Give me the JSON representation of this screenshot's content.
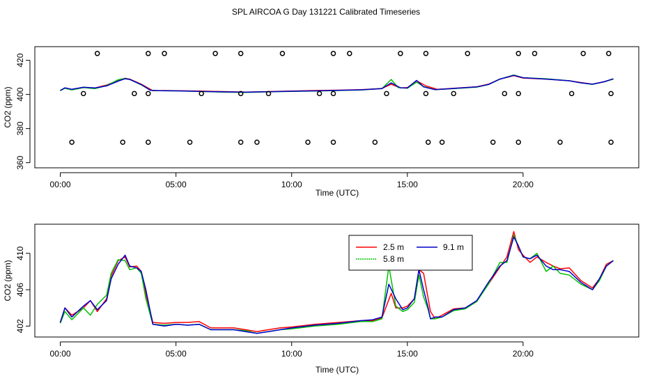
{
  "figure_title": "SPL AIRCOA G  Day 131221  Calibrated Timeseries",
  "chart_data": [
    {
      "type": "scatter+line",
      "xlabel": "Time (UTC)",
      "ylabel": "CO2 (ppm)",
      "xlim": [
        -1.1,
        25.0
      ],
      "ylim": [
        357,
        428
      ],
      "xticks": [
        0,
        5,
        10,
        15,
        20
      ],
      "xtick_labels": [
        "00:00",
        "05:00",
        "10:00",
        "15:00",
        "20:00"
      ],
      "yticks": [
        360,
        380,
        400,
        420
      ],
      "ytick_labels": [
        "360",
        "380",
        "400",
        "420"
      ],
      "marker_series": [
        {
          "y": 424,
          "x": [
            1.6,
            3.8,
            4.5,
            6.7,
            7.8,
            9.6,
            11.8,
            12.5,
            14.7,
            15.8,
            17.6,
            19.8,
            20.5,
            22.6,
            23.7
          ]
        },
        {
          "y": 400.5,
          "x": [
            1.0,
            3.2,
            3.8,
            6.1,
            7.8,
            9.0,
            11.2,
            11.8,
            14.1,
            15.8,
            17.0,
            19.2,
            19.8,
            22.1,
            23.8
          ]
        },
        {
          "y": 372,
          "x": [
            0.5,
            2.7,
            3.8,
            5.6,
            7.8,
            8.5,
            10.7,
            11.8,
            13.6,
            15.9,
            16.5,
            18.7,
            19.8,
            21.6,
            23.8
          ]
        }
      ],
      "series": [
        {
          "name": "2.5 m",
          "color": "#ff0000",
          "x": [
            0.0,
            0.2,
            0.5,
            1.0,
            1.5,
            2.0,
            2.5,
            2.8,
            3.0,
            3.5,
            4.0,
            4.5,
            5.0,
            6.0,
            7.0,
            8.0,
            9.0,
            10.0,
            11.0,
            12.0,
            13.0,
            13.9,
            14.3,
            14.7,
            15.0,
            15.4,
            15.8,
            16.3,
            17.0,
            18.0,
            18.5,
            19.0,
            19.6,
            20.0,
            21.0,
            22.0,
            22.5,
            23.0,
            23.5,
            23.9
          ],
          "y": [
            402.3,
            403.8,
            403.0,
            404.0,
            403.8,
            405.5,
            408.0,
            409.5,
            409.0,
            406.0,
            402.2,
            402.3,
            402.2,
            402.0,
            401.7,
            401.4,
            401.7,
            402.0,
            402.3,
            402.5,
            402.8,
            403.5,
            406.0,
            403.8,
            404.0,
            408.0,
            405.0,
            403.0,
            403.6,
            404.5,
            406.0,
            409.0,
            411.0,
            409.6,
            409.0,
            408.0,
            407.0,
            406.0,
            407.5,
            409.0
          ]
        },
        {
          "name": "5.8 m",
          "color": "#00c000",
          "x": [
            0.0,
            0.2,
            0.5,
            1.0,
            1.5,
            2.0,
            2.5,
            2.8,
            3.0,
            3.5,
            3.9,
            4.3,
            5.0,
            6.0,
            7.0,
            8.0,
            9.0,
            10.0,
            11.0,
            12.0,
            13.0,
            13.9,
            14.3,
            14.6,
            15.0,
            15.4,
            15.7,
            16.2,
            17.0,
            18.0,
            18.5,
            19.0,
            19.6,
            20.0,
            21.0,
            22.0,
            22.5,
            23.0,
            23.5,
            23.9
          ],
          "y": [
            402.2,
            403.6,
            402.6,
            404.0,
            403.4,
            405.2,
            408.6,
            409.4,
            408.8,
            405.6,
            402.4,
            402.2,
            402.1,
            401.8,
            401.4,
            401.2,
            401.5,
            401.8,
            402.0,
            402.3,
            402.6,
            403.4,
            408.8,
            404.0,
            403.6,
            407.2,
            404.6,
            402.8,
            403.4,
            404.3,
            405.8,
            409.0,
            411.4,
            409.8,
            409.2,
            408.0,
            406.8,
            405.9,
            407.4,
            409.0
          ]
        },
        {
          "name": "9.1 m",
          "color": "#0000cc",
          "x": [
            0.0,
            0.2,
            0.5,
            1.0,
            1.5,
            2.0,
            2.5,
            2.8,
            3.0,
            3.5,
            3.9,
            4.3,
            5.0,
            6.0,
            7.0,
            8.0,
            9.0,
            10.0,
            11.0,
            12.0,
            13.0,
            13.9,
            14.3,
            14.7,
            15.0,
            15.4,
            15.7,
            16.2,
            17.0,
            18.0,
            18.5,
            19.0,
            19.6,
            20.0,
            21.0,
            22.0,
            22.5,
            23.0,
            23.5,
            23.9
          ],
          "y": [
            402.3,
            403.9,
            403.0,
            404.2,
            403.8,
            405.0,
            407.8,
            409.2,
            408.8,
            405.8,
            402.4,
            402.2,
            402.1,
            401.8,
            401.5,
            401.3,
            401.6,
            401.9,
            402.1,
            402.4,
            402.7,
            403.4,
            406.8,
            403.9,
            403.8,
            408.2,
            404.4,
            402.8,
            403.5,
            404.4,
            405.8,
            409.0,
            411.2,
            409.8,
            409.0,
            408.0,
            406.8,
            406.0,
            407.4,
            409.2
          ]
        }
      ]
    },
    {
      "type": "line",
      "xlabel": "Time (UTC)",
      "ylabel": "CO2 (ppm)",
      "xlim": [
        -1.1,
        25.0
      ],
      "ylim": [
        400.8,
        413.2
      ],
      "xticks": [
        0,
        5,
        10,
        15,
        20
      ],
      "xtick_labels": [
        "00:00",
        "05:00",
        "10:00",
        "15:00",
        "20:00"
      ],
      "yticks": [
        402,
        406,
        410
      ],
      "ytick_labels": [
        "402",
        "406",
        "410"
      ],
      "legend": {
        "position": "top-right",
        "entries": [
          "2.5 m",
          "9.1 m",
          "5.8 m"
        ]
      },
      "series": [
        {
          "name": "2.5 m",
          "color": "#ff0000",
          "x": [
            0.0,
            0.2,
            0.5,
            1.0,
            1.3,
            1.6,
            2.0,
            2.2,
            2.5,
            2.8,
            3.0,
            3.3,
            3.5,
            3.7,
            4.0,
            4.5,
            5.0,
            5.5,
            6.0,
            6.5,
            7.0,
            7.5,
            8.0,
            8.5,
            9.0,
            9.5,
            10.0,
            11.0,
            12.0,
            13.0,
            13.5,
            13.9,
            14.3,
            14.5,
            14.8,
            15.0,
            15.3,
            15.5,
            15.7,
            15.9,
            16.0,
            16.2,
            16.5,
            17.0,
            17.5,
            18.0,
            18.5,
            19.0,
            19.3,
            19.6,
            19.8,
            20.0,
            20.3,
            20.6,
            21.0,
            21.3,
            21.6,
            22.0,
            22.5,
            23.0,
            23.3,
            23.6,
            23.9
          ],
          "y": [
            402.4,
            404.0,
            403.2,
            404.0,
            404.8,
            403.6,
            405.0,
            407.5,
            409.2,
            409.6,
            408.5,
            408.6,
            408.0,
            405.5,
            402.4,
            402.3,
            402.4,
            402.4,
            402.5,
            401.8,
            401.8,
            401.8,
            401.6,
            401.4,
            401.6,
            401.8,
            401.9,
            402.2,
            402.4,
            402.6,
            402.6,
            402.9,
            405.6,
            404.0,
            404.0,
            404.2,
            405.0,
            408.2,
            407.8,
            405.0,
            403.6,
            402.8,
            403.2,
            403.9,
            404.0,
            404.8,
            406.6,
            408.5,
            409.6,
            412.4,
            410.4,
            409.8,
            409.0,
            409.6,
            409.0,
            408.6,
            408.3,
            408.4,
            407.0,
            406.2,
            407.2,
            408.8,
            409.2
          ]
        },
        {
          "name": "5.8 m",
          "color": "#00c000",
          "x": [
            0.0,
            0.2,
            0.5,
            1.0,
            1.3,
            1.6,
            2.0,
            2.2,
            2.5,
            2.8,
            3.0,
            3.3,
            3.5,
            3.7,
            4.0,
            4.5,
            5.0,
            5.5,
            6.0,
            6.5,
            7.0,
            7.5,
            8.0,
            8.5,
            9.0,
            9.5,
            10.0,
            11.0,
            12.0,
            13.0,
            13.5,
            13.9,
            14.2,
            14.5,
            14.8,
            15.0,
            15.3,
            15.5,
            15.7,
            15.9,
            16.0,
            16.2,
            16.5,
            17.0,
            17.5,
            18.0,
            18.5,
            19.0,
            19.3,
            19.6,
            19.8,
            20.0,
            20.3,
            20.6,
            21.0,
            21.3,
            21.6,
            22.0,
            22.5,
            23.0,
            23.3,
            23.6,
            23.9
          ],
          "y": [
            402.3,
            403.6,
            402.7,
            404.0,
            403.2,
            404.4,
            405.4,
            407.8,
            409.3,
            409.2,
            408.2,
            408.4,
            407.8,
            405.0,
            402.2,
            402.1,
            402.2,
            402.1,
            402.2,
            401.6,
            401.6,
            401.6,
            401.5,
            401.2,
            401.4,
            401.6,
            401.7,
            402.0,
            402.2,
            402.5,
            402.5,
            402.8,
            408.6,
            404.2,
            403.6,
            403.8,
            404.6,
            407.6,
            405.2,
            403.8,
            402.8,
            402.8,
            403.0,
            403.7,
            403.9,
            404.7,
            406.6,
            409.0,
            409.0,
            412.0,
            410.8,
            409.6,
            409.4,
            410.0,
            408.0,
            408.6,
            407.8,
            407.6,
            406.6,
            406.0,
            407.0,
            408.6,
            409.2
          ]
        },
        {
          "name": "9.1 m",
          "color": "#0000cc",
          "x": [
            0.0,
            0.2,
            0.5,
            1.0,
            1.3,
            1.6,
            2.0,
            2.2,
            2.5,
            2.8,
            3.0,
            3.3,
            3.5,
            3.7,
            4.0,
            4.5,
            5.0,
            5.5,
            6.0,
            6.5,
            7.0,
            7.5,
            8.0,
            8.5,
            9.0,
            9.5,
            10.0,
            11.0,
            12.0,
            13.0,
            13.5,
            13.9,
            14.2,
            14.5,
            14.8,
            15.0,
            15.3,
            15.5,
            15.7,
            15.9,
            16.0,
            16.2,
            16.5,
            17.0,
            17.5,
            18.0,
            18.5,
            19.0,
            19.3,
            19.6,
            19.8,
            20.0,
            20.3,
            20.6,
            21.0,
            21.3,
            21.6,
            22.0,
            22.5,
            23.0,
            23.3,
            23.6,
            23.9
          ],
          "y": [
            402.4,
            404.0,
            403.0,
            404.2,
            404.8,
            403.8,
            404.8,
            407.2,
            408.8,
            409.8,
            408.6,
            408.4,
            408.0,
            406.0,
            402.2,
            402.0,
            402.2,
            402.1,
            402.2,
            401.6,
            401.6,
            401.6,
            401.4,
            401.2,
            401.4,
            401.6,
            401.8,
            402.1,
            402.3,
            402.6,
            402.7,
            403.0,
            406.6,
            405.0,
            403.8,
            404.0,
            405.0,
            408.2,
            406.0,
            404.0,
            402.8,
            403.0,
            403.0,
            403.8,
            404.0,
            404.8,
            406.8,
            408.6,
            409.2,
            411.8,
            410.8,
            409.6,
            409.4,
            409.8,
            408.6,
            408.2,
            408.2,
            408.0,
            406.8,
            406.0,
            407.2,
            408.6,
            409.2
          ]
        }
      ]
    }
  ]
}
